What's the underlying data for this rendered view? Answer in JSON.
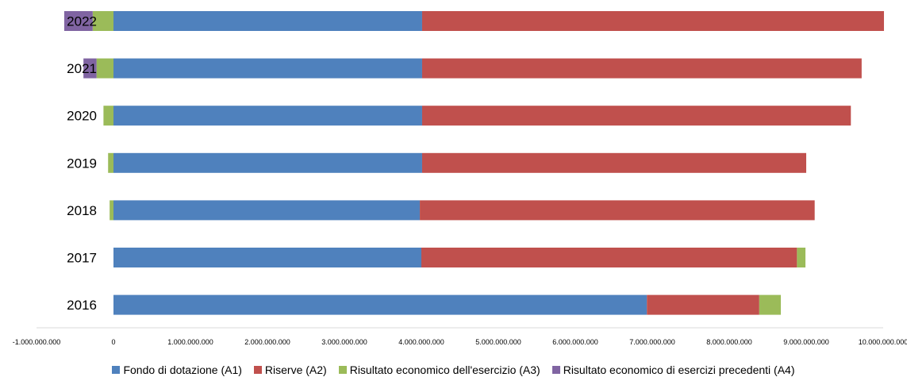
{
  "chart_data": {
    "type": "bar",
    "orientation": "horizontal",
    "stacked": true,
    "title": "",
    "xlabel": "",
    "ylabel": "",
    "categories": [
      "2016",
      "2017",
      "2018",
      "2019",
      "2020",
      "2021",
      "2022"
    ],
    "xlim": [
      -1000000000,
      10000000000
    ],
    "x_ticks": [
      -1000000000,
      0,
      1000000000,
      2000000000,
      3000000000,
      4000000000,
      5000000000,
      6000000000,
      7000000000,
      8000000000,
      9000000000,
      10000000000
    ],
    "x_tick_labels": [
      "-1.000.000.000",
      "0",
      "1.000.000.000",
      "2.000.000.000",
      "3.000.000.000",
      "4.000.000.000",
      "5.000.000.000",
      "6.000.000.000",
      "7.000.000.000",
      "8.000.000.000",
      "9.000.000.000",
      "10.000.000.000"
    ],
    "series": [
      {
        "name": "Fondo di dotazione (A1)",
        "color": "#4F81BD",
        "values": [
          6930000000,
          4000000000,
          3980000000,
          4010000000,
          4010000000,
          4010000000,
          4010000000
        ]
      },
      {
        "name": "Riserve (A2)",
        "color": "#C0504D",
        "values": [
          1460000000,
          4880000000,
          5130000000,
          4990000000,
          5570000000,
          5710000000,
          6000000000
        ]
      },
      {
        "name": "Risultato economico dell'esercizio (A3)",
        "color": "#9BBB59",
        "values": [
          280000000,
          110000000,
          -50000000,
          -70000000,
          -130000000,
          -220000000,
          -270000000
        ]
      },
      {
        "name": "Risultato economico di esercizi precedenti (A4)",
        "color": "#8064A2",
        "values": [
          0,
          0,
          0,
          0,
          0,
          -170000000,
          -370000000
        ]
      }
    ],
    "grid": false,
    "legend_position": "bottom"
  }
}
